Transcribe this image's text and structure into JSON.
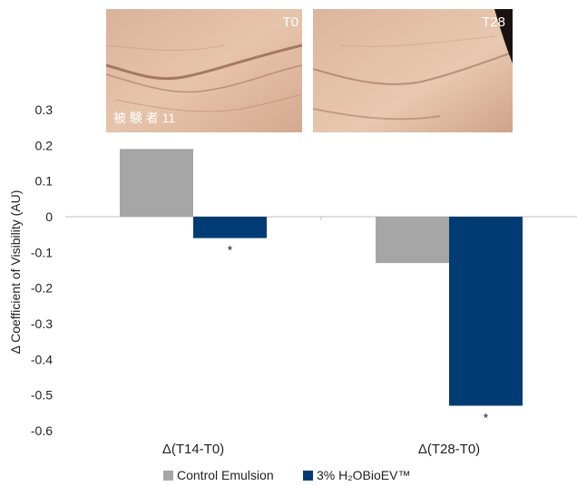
{
  "photos": [
    {
      "label": "T0",
      "caption": "被 験 者 11"
    },
    {
      "label": "T28",
      "caption": ""
    }
  ],
  "chart_data": {
    "type": "bar",
    "title": "",
    "xlabel": "",
    "ylabel": "Δ Coefficient of Visibility (AU)",
    "ylim": [
      -0.6,
      0.3
    ],
    "yticks": [
      0.3,
      0.2,
      0.1,
      0,
      -0.1,
      -0.2,
      -0.3,
      -0.4,
      -0.5,
      -0.6
    ],
    "ytick_labels": [
      "0.3",
      "0.2",
      "0.1",
      "0",
      "-0.1",
      "-0.2",
      "-0.3",
      "-0.4",
      "-0.5",
      "-0.6"
    ],
    "grid": false,
    "legend_position": "bottom",
    "categories": [
      "Δ(T14-T0)",
      "Δ(T28-T0)"
    ],
    "series": [
      {
        "name": "Control Emulsion",
        "color": "#a6a6a6",
        "values": [
          0.19,
          -0.13
        ],
        "annotations": [
          "",
          ""
        ]
      },
      {
        "name": "3% H₂OBioEV™",
        "color": "#003c73",
        "values": [
          -0.06,
          -0.53
        ],
        "annotations": [
          "*",
          "*"
        ]
      }
    ]
  }
}
